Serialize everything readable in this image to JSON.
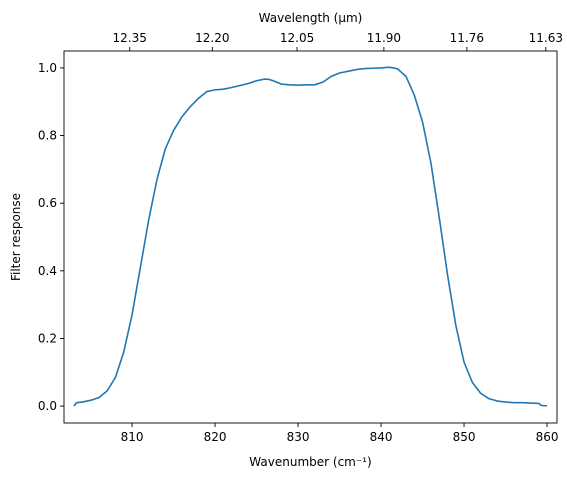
{
  "chart_data": {
    "type": "line",
    "xlabel": "Wavenumber (cm⁻¹)",
    "ylabel": "Filter response",
    "top_xlabel": "Wavelength (μm)",
    "xlim": [
      801.8,
      861.2
    ],
    "ylim": [
      -0.05,
      1.05
    ],
    "xticks": [
      810,
      820,
      830,
      840,
      850,
      860
    ],
    "xtick_labels": [
      "810",
      "820",
      "830",
      "840",
      "850",
      "860"
    ],
    "yticks": [
      0.0,
      0.2,
      0.4,
      0.6,
      0.8,
      1.0
    ],
    "ytick_labels": [
      "0.0",
      "0.2",
      "0.4",
      "0.6",
      "0.8",
      "1.0"
    ],
    "top_ticks": [
      {
        "at_wavenumber": 809.72,
        "label": "12.35"
      },
      {
        "at_wavenumber": 819.67,
        "label": "12.20"
      },
      {
        "at_wavenumber": 829.88,
        "label": "12.05"
      },
      {
        "at_wavenumber": 840.34,
        "label": "11.90"
      },
      {
        "at_wavenumber": 850.34,
        "label": "11.76"
      },
      {
        "at_wavenumber": 859.85,
        "label": "11.63"
      }
    ],
    "grid": false,
    "series": [
      {
        "color": "#1f77b4",
        "x": [
          803.0,
          803.3,
          804.0,
          805.0,
          806.0,
          807.0,
          808.0,
          809.0,
          810.0,
          811.0,
          812.0,
          813.0,
          814.0,
          815.0,
          816.0,
          817.0,
          818.0,
          819.0,
          820.0,
          821.0,
          822.0,
          823.0,
          824.0,
          825.0,
          826.0,
          826.5,
          827.0,
          828.0,
          829.0,
          830.0,
          831.0,
          832.0,
          833.0,
          834.0,
          835.0,
          836.0,
          837.0,
          838.0,
          839.0,
          840.0,
          841.0,
          841.5,
          842.0,
          843.0,
          844.0,
          845.0,
          846.0,
          847.0,
          848.0,
          849.0,
          850.0,
          851.0,
          852.0,
          853.0,
          854.0,
          855.0,
          856.0,
          857.0,
          858.0,
          859.0,
          859.3,
          859.7,
          860.0
        ],
        "y": [
          0.0,
          0.01,
          0.012,
          0.017,
          0.025,
          0.045,
          0.085,
          0.16,
          0.27,
          0.41,
          0.55,
          0.67,
          0.76,
          0.815,
          0.855,
          0.885,
          0.91,
          0.93,
          0.935,
          0.937,
          0.942,
          0.948,
          0.954,
          0.962,
          0.967,
          0.966,
          0.962,
          0.952,
          0.95,
          0.949,
          0.95,
          0.95,
          0.958,
          0.975,
          0.985,
          0.99,
          0.995,
          0.998,
          0.999,
          1.0,
          1.002,
          1.0,
          0.997,
          0.975,
          0.92,
          0.84,
          0.72,
          0.56,
          0.39,
          0.24,
          0.13,
          0.07,
          0.038,
          0.022,
          0.015,
          0.012,
          0.01,
          0.01,
          0.009,
          0.008,
          0.002,
          0.001,
          0.001
        ]
      }
    ]
  }
}
